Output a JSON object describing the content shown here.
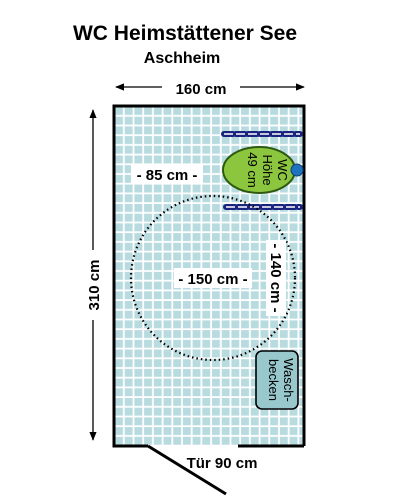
{
  "title": "WC Heimstättener See",
  "subtitle": "Aschheim",
  "dimensions": {
    "width_label": "160 cm",
    "length_label": "310 cm",
    "wc_clearance_label": "- 85 cm -",
    "turning_circle_label": "- 150 cm -",
    "side_clearance_label": "- 140 cm -",
    "door_label": "Tür 90 cm"
  },
  "fixtures": {
    "wc_label_lines": [
      "WC",
      "Höhe",
      "49 cm"
    ],
    "sink_label_lines": [
      "Wasch-",
      "becken"
    ]
  },
  "colors": {
    "floor_tile": "#b8dbe0",
    "floor_grout": "#ffffff",
    "wc": "#8cc63f",
    "wc_outline": "#2e5a10",
    "flush_button": "#1e73be",
    "grab_bar": "#1a237e",
    "sink": "#98c8cc",
    "wall": "#000000"
  }
}
